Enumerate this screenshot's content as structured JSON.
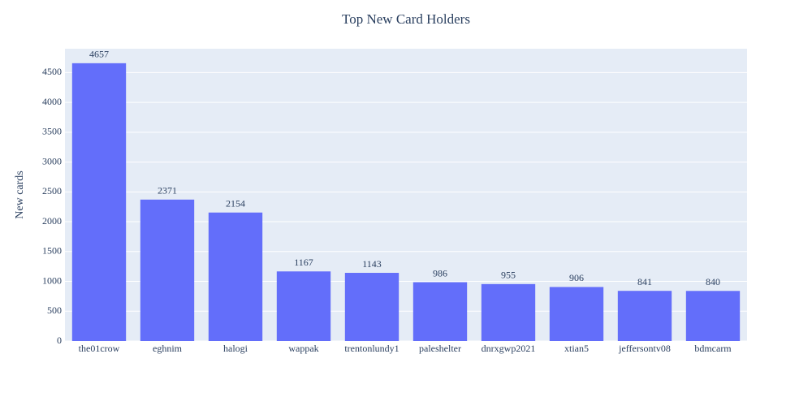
{
  "chart_data": {
    "type": "bar",
    "title": "Top New Card Holders",
    "y_label": "New cards",
    "categories": [
      "the01crow",
      "eghnim",
      "halogi",
      "wappak",
      "trentonlundy1",
      "paleshelter",
      "dnrxgwp2021",
      "xtian5",
      "jeffersontv08",
      "bdmcarm"
    ],
    "values": [
      4657,
      2371,
      2154,
      1167,
      1143,
      986,
      955,
      906,
      841,
      840
    ],
    "color": "#636efa",
    "ylim": [
      0,
      4900
    ],
    "yticks": [
      0,
      500,
      1000,
      1500,
      2000,
      2500,
      3000,
      3500,
      4000,
      4500
    ],
    "grid": true
  }
}
